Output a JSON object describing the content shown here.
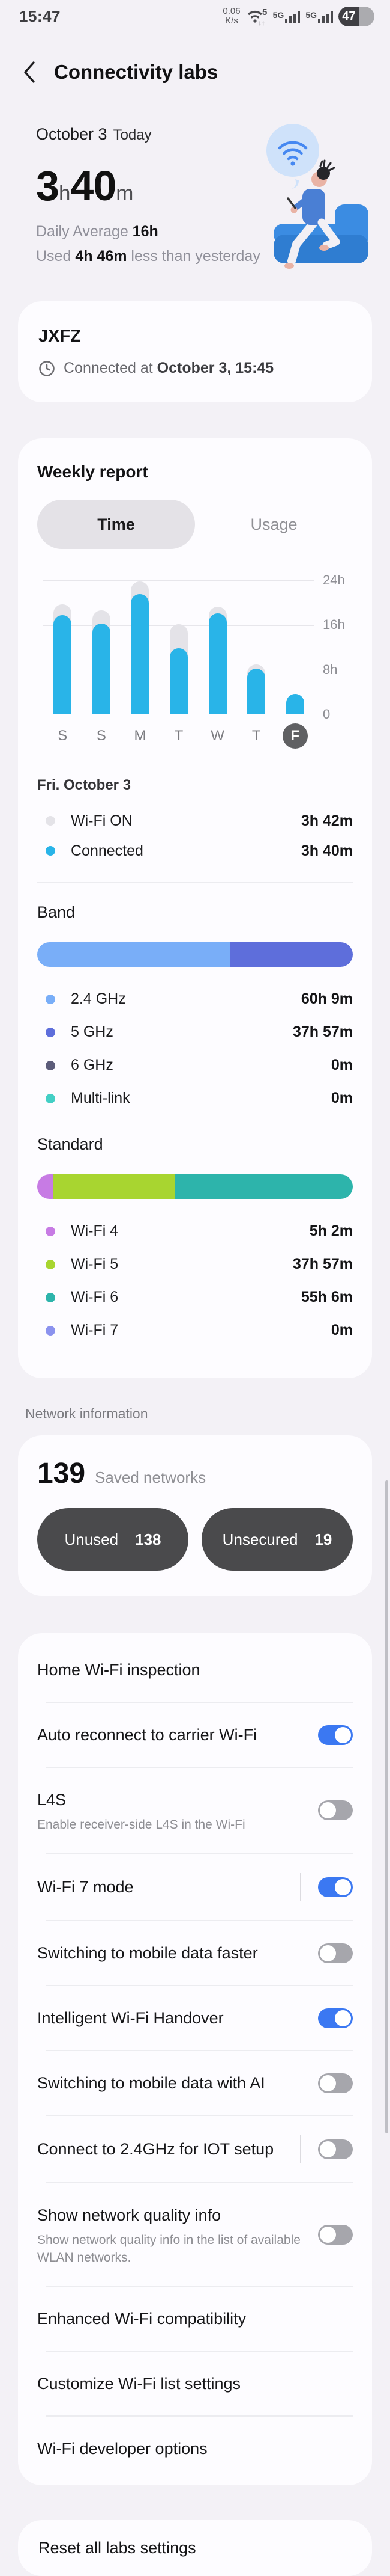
{
  "status_bar": {
    "time": "15:47",
    "speed_top": "0.06",
    "speed_bottom": "K/s",
    "wifi_badge": "5",
    "cell_label_1": "5G",
    "cell_label_2": "5G",
    "battery_percent": "47"
  },
  "header": {
    "title": "Connectivity labs"
  },
  "summary": {
    "date": "October 3",
    "date_suffix": "Today",
    "hours": "3",
    "hours_unit": "h",
    "minutes": "40",
    "minutes_unit": "m",
    "daily_average_label": "Daily Average ",
    "daily_average_value": "16h",
    "used_label": "Used ",
    "used_value": "4h 46m",
    "used_suffix": " less than yesterday"
  },
  "connection_card": {
    "ssid": "JXFZ",
    "connected_label": "Connected at ",
    "connected_value": "October 3, 15:45"
  },
  "weekly_report": {
    "title": "Weekly report",
    "tabs": [
      {
        "label": "Time",
        "selected": true
      },
      {
        "label": "Usage",
        "selected": false
      }
    ],
    "selected_day_header": "Fri. October 3",
    "legend": [
      {
        "key": "wifi-on",
        "label": "Wi-Fi ON",
        "value": "3h 42m",
        "color": "#e4e3e8"
      },
      {
        "key": "connected",
        "label": "Connected",
        "value": "3h 40m",
        "color": "#29b4e8"
      }
    ]
  },
  "chart_data": {
    "type": "bar",
    "title": "Weekly report - Time",
    "categories": [
      "S",
      "S",
      "M",
      "T",
      "W",
      "T",
      "F"
    ],
    "series": [
      {
        "name": "Wi-Fi ON",
        "color": "#e4e3e8",
        "values_hours": [
          19.7,
          18.6,
          23.8,
          16.1,
          19.3,
          8.9,
          3.7
        ]
      },
      {
        "name": "Connected",
        "color": "#29b4e8",
        "values_hours": [
          17.8,
          16.3,
          21.5,
          11.8,
          18.1,
          8.2,
          3.67
        ]
      }
    ],
    "ylim": [
      0,
      24
    ],
    "yticks": [
      "24h",
      "16h",
      "8h",
      "0"
    ],
    "selected_index": 6,
    "legend_position": "below",
    "grid": true
  },
  "band": {
    "title": "Band",
    "segments": [
      {
        "key": "2-4ghz",
        "pct": 61.3,
        "color": "#79aef8"
      },
      {
        "key": "5ghz",
        "pct": 38.7,
        "color": "#5e6edb"
      }
    ],
    "items": [
      {
        "key": "2-4ghz",
        "label": "2.4 GHz",
        "value": "60h 9m",
        "color": "#79aef8"
      },
      {
        "key": "5ghz",
        "label": "5 GHz",
        "value": "37h 57m",
        "color": "#5e6edb"
      },
      {
        "key": "6ghz",
        "label": "6 GHz",
        "value": "0m",
        "color": "#5c5c7a"
      },
      {
        "key": "multi-link",
        "label": "Multi-link",
        "value": "0m",
        "color": "#43cfc5"
      }
    ]
  },
  "standard": {
    "title": "Standard",
    "segments": [
      {
        "key": "wifi4",
        "pct": 5.1,
        "color": "#c77be4"
      },
      {
        "key": "wifi5",
        "pct": 38.7,
        "color": "#a8d530"
      },
      {
        "key": "wifi6",
        "pct": 56.2,
        "color": "#2db4ab"
      }
    ],
    "items": [
      {
        "key": "wifi4",
        "label": "Wi-Fi 4",
        "value": "5h 2m",
        "color": "#c77be4"
      },
      {
        "key": "wifi5",
        "label": "Wi-Fi 5",
        "value": "37h 57m",
        "color": "#a8d530"
      },
      {
        "key": "wifi6",
        "label": "Wi-Fi 6",
        "value": "55h 6m",
        "color": "#2db4ab"
      },
      {
        "key": "wifi7",
        "label": "Wi-Fi 7",
        "value": "0m",
        "color": "#8b92ee"
      }
    ]
  },
  "network_info": {
    "section_title": "Network information",
    "count": "139",
    "count_label": "Saved networks",
    "buttons": [
      {
        "key": "unused",
        "label": "Unused",
        "count": "138"
      },
      {
        "key": "unsecured",
        "label": "Unsecured",
        "count": "19"
      }
    ]
  },
  "settings": {
    "items": [
      {
        "key": "home-wifi-inspection",
        "label": "Home Wi-Fi inspection",
        "sublabel": null,
        "toggle": null,
        "separated": false
      },
      {
        "key": "auto-reconnect-carrier-wifi",
        "label": "Auto reconnect to carrier Wi-Fi",
        "sublabel": null,
        "toggle": "on",
        "separated": false
      },
      {
        "key": "l4s",
        "label": "L4S",
        "sublabel": "Enable receiver-side L4S in the Wi-Fi",
        "toggle": "off",
        "separated": false
      },
      {
        "key": "wifi7-mode",
        "label": "Wi-Fi 7 mode",
        "sublabel": null,
        "toggle": "on",
        "separated": true
      },
      {
        "key": "switch-mobile-data-faster",
        "label": "Switching to mobile data faster",
        "sublabel": null,
        "toggle": "off",
        "separated": false
      },
      {
        "key": "intelligent-wifi-handover",
        "label": "Intelligent Wi-Fi Handover",
        "sublabel": null,
        "toggle": "on",
        "separated": false
      },
      {
        "key": "switch-mobile-data-ai",
        "label": "Switching to mobile data with AI",
        "sublabel": null,
        "toggle": "off",
        "separated": false
      },
      {
        "key": "connect-24ghz-iot",
        "label": "Connect to 2.4GHz for IOT setup",
        "sublabel": null,
        "toggle": "off",
        "separated": true
      },
      {
        "key": "show-network-quality",
        "label": "Show network quality info",
        "sublabel": "Show network quality info in the list of available WLAN networks.",
        "toggle": "off",
        "separated": false
      },
      {
        "key": "enhanced-wifi-compat",
        "label": "Enhanced Wi-Fi compatibility",
        "sublabel": null,
        "toggle": null,
        "separated": false
      },
      {
        "key": "customize-wifi-list",
        "label": "Customize Wi-Fi list settings",
        "sublabel": null,
        "toggle": null,
        "separated": false
      },
      {
        "key": "wifi-developer-options",
        "label": "Wi-Fi developer options",
        "sublabel": null,
        "toggle": null,
        "separated": false
      }
    ]
  },
  "reset": {
    "label": "Reset all labs settings"
  },
  "colors": {
    "page_bg": "#f3f1f6",
    "card_bg": "#fdfcff",
    "accent_blue": "#3b78f2",
    "chart_connected": "#29b4e8",
    "chart_wifi_on": "#e4e3e8",
    "dark_button": "#4a4a4c"
  }
}
